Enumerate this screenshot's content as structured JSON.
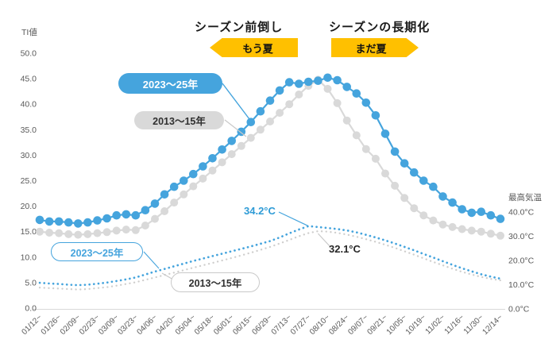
{
  "annotations": {
    "left": {
      "heading": "シーズン前倒し",
      "badge": "もう夏"
    },
    "right": {
      "heading": "シーズンの長期化",
      "badge": "まだ夏"
    }
  },
  "colors": {
    "accent_blue": "#45a4dd",
    "label_blue": "#2e9bd6",
    "light_gray": "#d9d9d9",
    "dotted_gray": "#cfcecd",
    "badge_yellow": "#ffc000",
    "axis_text": "#595959"
  },
  "chart_data": {
    "type": "line",
    "title": "",
    "left_axis": {
      "title": "TI値",
      "range": [
        0,
        50
      ],
      "tick_values": [
        50,
        45,
        40,
        35,
        30,
        25,
        20,
        15,
        10,
        5,
        0
      ],
      "tick_labels": [
        "50.0",
        "45.0",
        "40.0",
        "35.0",
        "30.0",
        "25.0",
        "20.0",
        "15.0",
        "10.0",
        "5.0",
        "0.0"
      ]
    },
    "right_axis": {
      "title": "最高気温",
      "range": [
        0,
        40
      ],
      "tick_values": [
        40,
        30,
        20,
        10,
        0
      ],
      "tick_labels": [
        "40.0°C",
        "30.0°C",
        "20.0°C",
        "10.0°C",
        "0.0°C"
      ]
    },
    "x_tick_labels": [
      "01/12~",
      "01/26~",
      "02/09~",
      "02/23~",
      "03/09~",
      "03/23~",
      "04/06~",
      "04/20~",
      "05/04~",
      "05/18~",
      "06/01~",
      "06/15~",
      "06/29~",
      "07/13~",
      "07/27~",
      "08/10~",
      "08/24~",
      "09/07~",
      "09/21~",
      "10/05~",
      "10/19~",
      "11/02~",
      "11/16~",
      "11/30~",
      "12/14~"
    ],
    "points_per_label": 2,
    "n_points": 49,
    "grid": false,
    "series": [
      {
        "id": "ti_2023",
        "name": "2023〜25年",
        "axis": "left",
        "style": "dots-line",
        "color": "#45a4dd",
        "values": [
          17.3,
          17.0,
          17.0,
          16.8,
          16.6,
          16.8,
          17.2,
          17.6,
          18.2,
          18.4,
          18.2,
          19.2,
          20.5,
          22.3,
          23.8,
          25.0,
          26.3,
          27.8,
          29.4,
          31.1,
          32.8,
          34.6,
          36.5,
          38.6,
          40.7,
          42.7,
          44.3,
          44.0,
          44.4,
          44.6,
          45.2,
          44.7,
          43.4,
          42.1,
          40.3,
          37.8,
          34.2,
          30.7,
          28.4,
          26.6,
          25.0,
          23.8,
          21.9,
          20.7,
          19.4,
          18.7,
          18.9,
          18.2,
          17.5
        ]
      },
      {
        "id": "ti_2013",
        "name": "2013〜15年",
        "axis": "left",
        "style": "dots-line",
        "color": "#d9d9d9",
        "values": [
          15.0,
          14.8,
          14.7,
          14.5,
          14.4,
          14.5,
          14.7,
          14.9,
          15.2,
          15.4,
          15.3,
          16.2,
          17.5,
          19.0,
          20.7,
          22.3,
          23.9,
          25.4,
          27.0,
          28.6,
          30.2,
          31.8,
          33.4,
          35.0,
          36.6,
          38.3,
          40.0,
          41.9,
          43.6,
          44.8,
          43.0,
          40.2,
          36.8,
          33.9,
          31.2,
          29.3,
          26.4,
          24.0,
          21.6,
          19.6,
          18.2,
          17.2,
          16.4,
          15.9,
          15.5,
          15.2,
          15.0,
          14.6,
          14.2
        ]
      },
      {
        "id": "temp_2023",
        "name": "2023〜25年",
        "axis": "right",
        "style": "dotted",
        "color": "#45a4dd",
        "values": [
          10.8,
          10.5,
          10.3,
          10.0,
          9.8,
          10.0,
          10.4,
          10.9,
          11.5,
          12.2,
          13.0,
          14.2,
          15.4,
          16.5,
          17.6,
          18.7,
          19.8,
          20.8,
          21.8,
          22.8,
          23.8,
          24.8,
          25.8,
          26.9,
          28.0,
          29.5,
          31.2,
          32.8,
          34.2,
          33.8,
          33.4,
          33.0,
          32.4,
          31.6,
          30.6,
          29.5,
          28.3,
          27.0,
          25.6,
          24.2,
          22.7,
          21.2,
          19.7,
          18.2,
          16.8,
          15.5,
          14.3,
          13.3,
          12.5
        ]
      },
      {
        "id": "temp_2013",
        "name": "2013〜15年",
        "axis": "right",
        "style": "dotted",
        "color": "#cfcecd",
        "values": [
          8.8,
          8.6,
          8.4,
          8.2,
          8.0,
          8.2,
          8.6,
          9.0,
          9.6,
          10.3,
          11.0,
          12.0,
          13.0,
          14.0,
          15.0,
          16.0,
          17.0,
          18.0,
          19.0,
          20.0,
          21.0,
          22.1,
          23.2,
          24.4,
          25.6,
          27.0,
          28.5,
          30.0,
          31.3,
          32.1,
          31.9,
          31.4,
          30.7,
          29.8,
          28.8,
          27.7,
          26.5,
          25.2,
          23.8,
          22.4,
          20.9,
          19.4,
          18.0,
          16.6,
          15.3,
          14.2,
          13.2,
          12.4,
          11.8
        ]
      }
    ],
    "point_labels": [
      {
        "text": "34.2°C",
        "series": "temp_2023",
        "index": 28,
        "value": 34.2,
        "color": "#2e9bd6"
      },
      {
        "text": "32.1°C",
        "series": "temp_2013",
        "index": 29,
        "value": 32.1,
        "color": "#262626"
      }
    ],
    "legend_position": "on-chart-callouts"
  }
}
